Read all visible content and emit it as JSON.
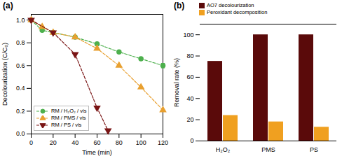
{
  "chart_data": [
    {
      "type": "line",
      "title": "(a)",
      "xlabel": "Time (min)",
      "ylabel": "Decolourization (C/C₀)",
      "x": [
        0,
        10,
        20,
        40,
        60,
        70,
        80,
        100,
        120
      ],
      "series": [
        {
          "name": "RM / H₂O₂ / vis",
          "color": "#4db04d",
          "marker": "circle",
          "line_style": "dashed",
          "values": [
            1.0,
            0.91,
            0.89,
            0.85,
            0.79,
            null,
            0.72,
            0.66,
            0.6
          ],
          "errors": [
            null,
            null,
            null,
            null,
            null,
            null,
            null,
            null,
            0.02
          ]
        },
        {
          "name": "RM / PMS / vis",
          "color": "#e8a030",
          "marker": "triangle-up",
          "line_style": "dashed",
          "values": [
            1.0,
            0.94,
            0.89,
            0.85,
            0.75,
            null,
            0.6,
            0.41,
            0.21
          ]
        },
        {
          "name": "RM / PS / vis",
          "color": "#7a1515",
          "marker": "triangle-down",
          "line_style": "dashed",
          "values": [
            1.0,
            null,
            0.89,
            0.7,
            0.23,
            0.03,
            null,
            null,
            null
          ]
        }
      ],
      "xlim": [
        0,
        120
      ],
      "ylim": [
        0.0,
        1.05
      ],
      "xticks": [
        0,
        20,
        40,
        60,
        80,
        100,
        120
      ],
      "yticks": [
        {
          "value": 0,
          "label": "0.0"
        },
        0.2,
        0.4,
        0.6,
        0.8,
        {
          "value": 1,
          "label": "1.0"
        }
      ],
      "grid": false,
      "legend": "lower left"
    },
    {
      "type": "bar",
      "title": "(b)",
      "ylabel": "Removal rate (%)",
      "categories": [
        "H₂O₂",
        "PMS",
        "PS"
      ],
      "series": [
        {
          "name": "AO7 decolourization",
          "color": "#5a0a0a",
          "values": [
            75,
            100,
            100
          ]
        },
        {
          "name": "Peroxidant decomposition",
          "color": "#f0a020",
          "values": [
            24,
            18,
            13
          ]
        }
      ],
      "ylim": [
        0,
        110
      ],
      "yticks": [
        0,
        20,
        40,
        60,
        80,
        100
      ],
      "grid": false,
      "legend": "upper left"
    }
  ]
}
